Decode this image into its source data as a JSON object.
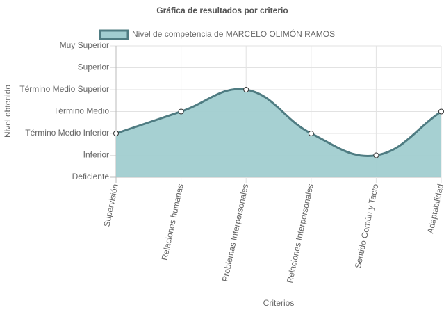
{
  "chart_data": {
    "type": "line",
    "title": "Gráfica de resultados por criterio",
    "xlabel": "Criterios",
    "ylabel": "Nivel obtenido",
    "categories": [
      "Supervisión",
      "Relaciones humanas",
      "Problemas Interpersonales",
      "Relaciones Interpersonales",
      "Sentido Común y Tacto",
      "Adaptabilidad"
    ],
    "series": [
      {
        "name": "Nivel de competencia de MARCELO OLIMÓN RAMOS",
        "color": "#4f7c82",
        "fill": "#a1cdd0",
        "values": [
          2,
          3,
          4,
          2,
          1,
          3
        ]
      }
    ],
    "ylim": [
      0,
      6
    ],
    "yticks": [
      {
        "value": 0,
        "label": "Deficiente"
      },
      {
        "value": 1,
        "label": "Inferior"
      },
      {
        "value": 2,
        "label": "Término Medio Inferior"
      },
      {
        "value": 3,
        "label": "Término Medio"
      },
      {
        "value": 4,
        "label": "Término Medio Superior"
      },
      {
        "value": 5,
        "label": "Superior"
      },
      {
        "value": 6,
        "label": "Muy Superior"
      }
    ],
    "grid": true,
    "legend": "top"
  }
}
